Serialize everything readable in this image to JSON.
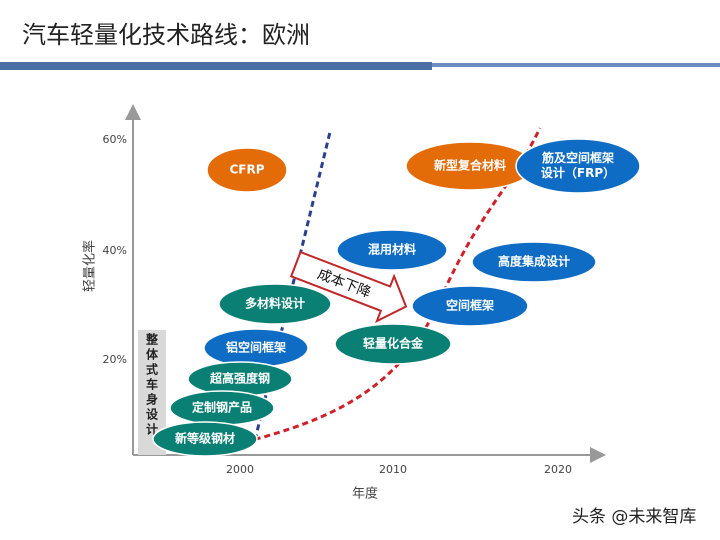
{
  "header": {
    "title": "汽车轻量化技术路线：欧洲"
  },
  "axes": {
    "y_label": "轻量化率",
    "y_ticks": [
      "60%",
      "40%",
      "20%"
    ],
    "x_label": "年度",
    "x_ticks": [
      "2000",
      "2010",
      "2020"
    ]
  },
  "side_label": "整体式车身设计",
  "arrow_label": "成本下降",
  "nodes": [
    {
      "label": [
        "CFRP"
      ]
    },
    {
      "label": [
        "新型复合材料"
      ]
    },
    {
      "label": [
        "筋及空间框架",
        "设计（FRP）"
      ]
    },
    {
      "label": [
        "混用材料"
      ]
    },
    {
      "label": [
        "高度集成设计"
      ]
    },
    {
      "label": [
        "空间框架"
      ]
    },
    {
      "label": [
        "多材料设计"
      ]
    },
    {
      "label": [
        "轻量化合金"
      ]
    },
    {
      "label": [
        "铝空间框架"
      ]
    },
    {
      "label": [
        "超高强度钢"
      ]
    },
    {
      "label": [
        "定制钢产品"
      ]
    },
    {
      "label": [
        "新等级钢材"
      ]
    }
  ],
  "watermark": "头条 @未来智库"
}
